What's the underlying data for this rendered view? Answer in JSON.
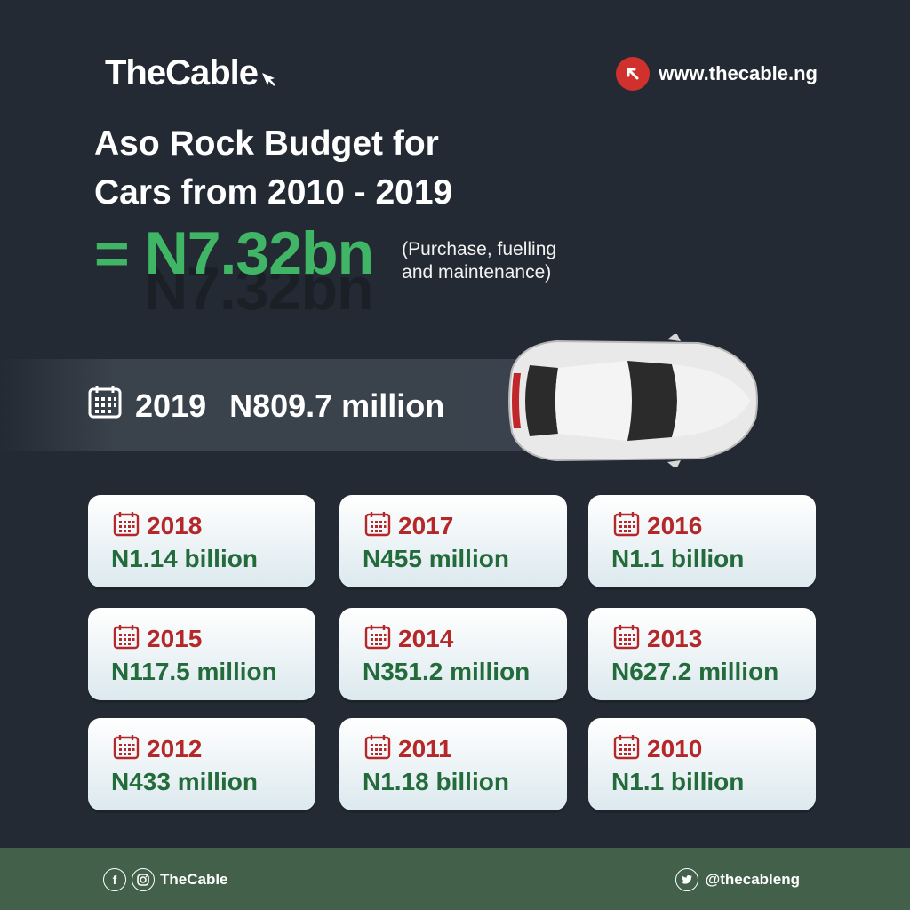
{
  "brand": {
    "name": "TheCable",
    "website": "www.thecable.ng"
  },
  "title": {
    "line1": "Aso Rock Budget for",
    "line2": "Cars from 2010 - 2019"
  },
  "total": {
    "value": "= N7.32bn",
    "shadow": "N7.32bn",
    "note_line1": "(Purchase, fuelling",
    "note_line2": "and maintenance)"
  },
  "highlight": {
    "year": "2019",
    "amount": "N809.7 million"
  },
  "cards": [
    {
      "year": "2018",
      "amount": "N1.14 billion"
    },
    {
      "year": "2017",
      "amount": "N455 million"
    },
    {
      "year": "2016",
      "amount": "N1.1 billion"
    },
    {
      "year": "2015",
      "amount": "N117.5 million"
    },
    {
      "year": "2014",
      "amount": "N351.2 million"
    },
    {
      "year": "2013",
      "amount": "N627.2 million"
    },
    {
      "year": "2012",
      "amount": "N433 million"
    },
    {
      "year": "2011",
      "amount": "N1.18 billion"
    },
    {
      "year": "2010",
      "amount": "N1.1 billion"
    }
  ],
  "footer": {
    "left_handle": "TheCable",
    "right_handle": "@thecableng"
  },
  "colors": {
    "background": "#232a33",
    "green": "#3fb565",
    "red": "#b5282a",
    "dark_green": "#236b3a",
    "footer": "#43604a"
  },
  "icons": [
    "cursor-icon",
    "link-arrow-icon",
    "calendar-icon",
    "car-image",
    "facebook-icon",
    "instagram-icon",
    "twitter-icon"
  ]
}
